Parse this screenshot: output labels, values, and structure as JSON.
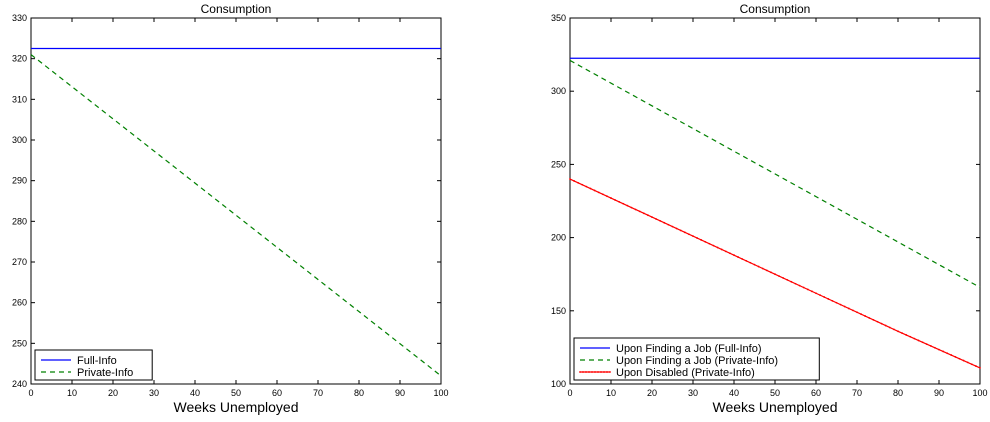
{
  "chart_data": [
    {
      "type": "line",
      "title": "Consumption",
      "xlabel": "Weeks Unemployed",
      "ylabel": "",
      "xlim": [
        0,
        100
      ],
      "ylim": [
        240,
        330
      ],
      "xticks": [
        0,
        10,
        20,
        30,
        40,
        50,
        60,
        70,
        80,
        90,
        100
      ],
      "yticks": [
        240,
        250,
        260,
        270,
        280,
        290,
        300,
        310,
        320,
        330
      ],
      "grid": false,
      "legend_position": "bottom-left",
      "series": [
        {
          "name": "Full-Info",
          "color": "#0000ff",
          "style": "solid",
          "x": [
            0,
            100
          ],
          "y": [
            322.5,
            322.5
          ]
        },
        {
          "name": "Private-Info",
          "color": "#008000",
          "style": "dashed",
          "x": [
            0,
            100
          ],
          "y": [
            321,
            242
          ]
        }
      ]
    },
    {
      "type": "line",
      "title": "Consumption",
      "xlabel": "Weeks Unemployed",
      "ylabel": "",
      "xlim": [
        0,
        100
      ],
      "ylim": [
        100,
        350
      ],
      "xticks": [
        0,
        10,
        20,
        30,
        40,
        50,
        60,
        70,
        80,
        90,
        100
      ],
      "yticks": [
        100,
        150,
        200,
        250,
        300,
        350
      ],
      "grid": false,
      "legend_position": "bottom-left",
      "series": [
        {
          "name": "Upon Finding a Job (Full-Info)",
          "color": "#0000ff",
          "style": "solid",
          "x": [
            0,
            100
          ],
          "y": [
            322.5,
            322.5
          ]
        },
        {
          "name": "Upon Finding a Job (Private-Info)",
          "color": "#008000",
          "style": "dashed",
          "x": [
            0,
            100
          ],
          "y": [
            321,
            166
          ]
        },
        {
          "name": "Upon Disabled (Private-Info)",
          "color": "#ff0000",
          "style": "solid-markers",
          "x": [
            0,
            20,
            40,
            60,
            80,
            100
          ],
          "y": [
            240,
            214,
            188,
            162,
            136,
            111
          ]
        }
      ]
    }
  ]
}
